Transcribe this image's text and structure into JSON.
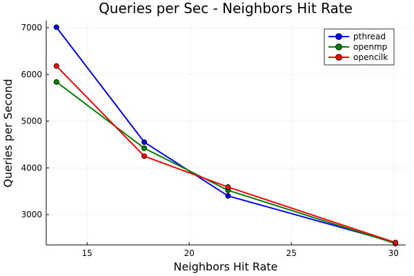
{
  "chart_data": {
    "type": "line",
    "title": "Queries per Sec - Neighbors Hit Rate",
    "xlabel": "Neighbors Hit Rate",
    "ylabel": "Queries per Second",
    "xlim": [
      13.0,
      30.6
    ],
    "ylim": [
      2350,
      7150
    ],
    "xticks": [
      15,
      20,
      25,
      30
    ],
    "yticks": [
      3000,
      4000,
      5000,
      6000,
      7000
    ],
    "grid": true,
    "legend_position": "top-right",
    "series": [
      {
        "name": "pthread",
        "color": "#0000ff",
        "points": [
          {
            "x": 13.5,
            "y": 7010
          },
          {
            "x": 17.8,
            "y": 4550
          },
          {
            "x": 21.9,
            "y": 3400
          },
          {
            "x": 30.1,
            "y": 2400
          }
        ]
      },
      {
        "name": "openmp",
        "color": "#008000",
        "points": [
          {
            "x": 13.5,
            "y": 5840
          },
          {
            "x": 17.8,
            "y": 4420
          },
          {
            "x": 21.9,
            "y": 3520
          },
          {
            "x": 30.1,
            "y": 2380
          }
        ]
      },
      {
        "name": "opencilk",
        "color": "#ff0000",
        "points": [
          {
            "x": 13.5,
            "y": 6180
          },
          {
            "x": 17.8,
            "y": 4250
          },
          {
            "x": 21.9,
            "y": 3590
          },
          {
            "x": 30.1,
            "y": 2400
          }
        ]
      }
    ]
  }
}
